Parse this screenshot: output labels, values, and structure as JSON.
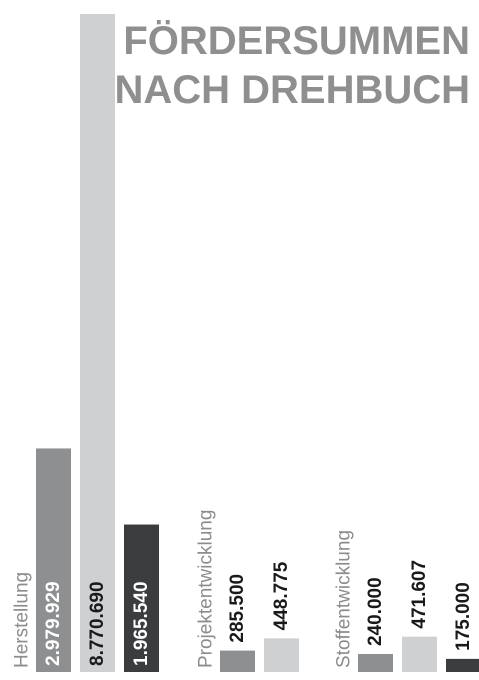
{
  "colors": {
    "series_1": "#8e8f91",
    "series_2": "#cfd0d2",
    "series_3": "#3b3c3e",
    "label_light": "#ffffff",
    "label_dark": "#1a1a1a",
    "category_text": "#8c8c8c",
    "title": "#8f8f8f"
  },
  "chart_data": {
    "type": "bar",
    "title_lines": [
      "FÖRDERSUMMEN",
      "NACH DREHBUCH"
    ],
    "categories": [
      "Herstellung",
      "Projektentwicklung",
      "Stoffentwicklung"
    ],
    "series": [
      {
        "values": [
          2979929,
          285500,
          240000
        ],
        "labels": [
          "2.979.929",
          "285.500",
          "240.000"
        ]
      },
      {
        "values": [
          8770690,
          448775,
          471607
        ],
        "labels": [
          "8.770.690",
          "448.775",
          "471.607"
        ]
      },
      {
        "values": [
          1965540,
          0,
          175000
        ],
        "labels": [
          "1.965.540",
          "",
          "175.000"
        ]
      }
    ],
    "ylim": [
      0,
      8770690
    ],
    "grid": false,
    "legend": "none"
  }
}
